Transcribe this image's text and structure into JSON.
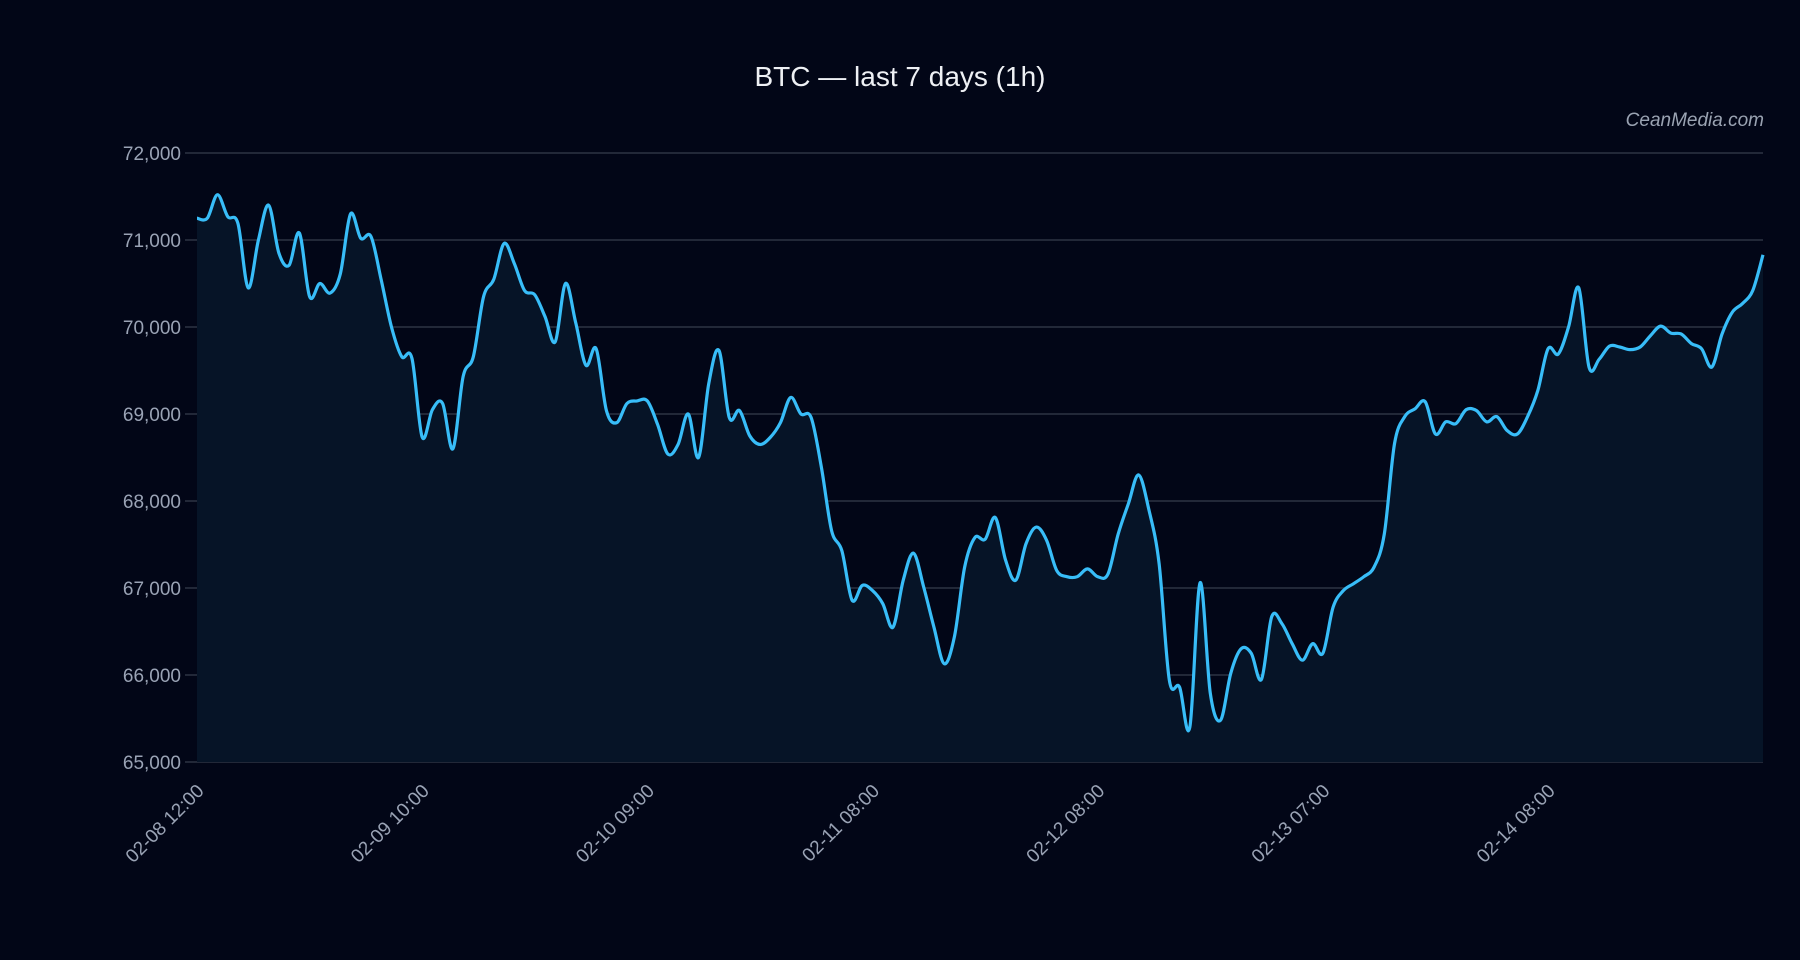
{
  "chart_data": {
    "type": "area",
    "title": "BTC — last 7 days (1h)",
    "watermark": "CeanMedia.com",
    "xlabel": "",
    "ylabel": "",
    "ylim": [
      65000,
      72000
    ],
    "y_ticks": [
      "65,000",
      "66,000",
      "67,000",
      "68,000",
      "69,000",
      "70,000",
      "71,000",
      "72,000"
    ],
    "y_tick_values": [
      65000,
      66000,
      67000,
      68000,
      69000,
      70000,
      71000,
      72000
    ],
    "x_ticks": [
      {
        "index": 0,
        "label": "02-08 12:00"
      },
      {
        "index": 22,
        "label": "02-09 10:00"
      },
      {
        "index": 44,
        "label": "02-10 09:00"
      },
      {
        "index": 66,
        "label": "02-11 08:00"
      },
      {
        "index": 88,
        "label": "02-12 08:00"
      },
      {
        "index": 110,
        "label": "02-13 07:00"
      },
      {
        "index": 132,
        "label": "02-14 08:00"
      }
    ],
    "grid": true,
    "colors": {
      "background": "#020617",
      "line": "#38bdf8",
      "fill": "#061427",
      "grid": "#2c3444"
    },
    "values": [
      71250,
      71250,
      71520,
      71270,
      71190,
      70450,
      71000,
      71400,
      70850,
      70710,
      71080,
      70350,
      70500,
      70390,
      70610,
      71300,
      71020,
      71040,
      70540,
      70000,
      69660,
      69640,
      68735,
      69050,
      69120,
      68600,
      69430,
      69660,
      70350,
      70550,
      70960,
      70730,
      70420,
      70370,
      70120,
      69830,
      70500,
      70050,
      69560,
      69750,
      69040,
      68900,
      69120,
      69150,
      69150,
      68880,
      68540,
      68650,
      69000,
      68500,
      69350,
      69730,
      68960,
      69040,
      68750,
      68650,
      68730,
      68900,
      69190,
      69000,
      68960,
      68390,
      67660,
      67430,
      66860,
      67030,
      66970,
      66820,
      66550,
      67090,
      67400,
      67010,
      66550,
      66130,
      66440,
      67240,
      67580,
      67560,
      67810,
      67320,
      67090,
      67510,
      67700,
      67550,
      67200,
      67130,
      67130,
      67220,
      67130,
      67160,
      67620,
      67970,
      68300,
      67900,
      67280,
      65940,
      65860,
      65400,
      67060,
      65790,
      65480,
      66020,
      66300,
      66250,
      65950,
      66670,
      66590,
      66360,
      66170,
      66360,
      66250,
      66780,
      66970,
      67050,
      67130,
      67240,
      67620,
      68660,
      68970,
      69060,
      69140,
      68770,
      68910,
      68890,
      69050,
      69040,
      68910,
      68970,
      68810,
      68770,
      68970,
      69270,
      69750,
      69690,
      70000,
      70450,
      69540,
      69630,
      69780,
      69770,
      69740,
      69770,
      69900,
      70010,
      69930,
      69920,
      69810,
      69750,
      69540,
      69920,
      70170,
      70270,
      70420,
      70830
    ]
  }
}
